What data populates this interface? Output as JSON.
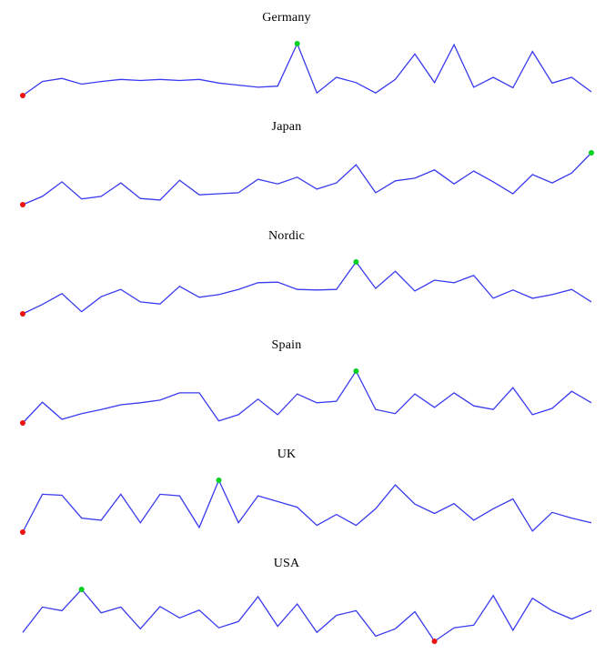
{
  "page": {
    "background": "#ffffff",
    "line_color": "#3a3af0",
    "min_marker_color": "#ee1111",
    "max_marker_color": "#00d020"
  },
  "chart_data": [
    {
      "type": "line",
      "title": "Germany",
      "x_range": [
        1,
        30
      ],
      "ylim": [
        0,
        100
      ],
      "grid": false,
      "axes": "none",
      "values": [
        0,
        27,
        33,
        22,
        27,
        31,
        29,
        31,
        29,
        31,
        24,
        20,
        16,
        18,
        100,
        5,
        35,
        25,
        5,
        31,
        80,
        25,
        98,
        16,
        35,
        15,
        85,
        24,
        35,
        7
      ],
      "min_marker": {
        "index": 0,
        "color": "#ee1111"
      },
      "max_marker": {
        "index": 14,
        "color": "#00d020"
      },
      "line_color": "#3a3af0"
    },
    {
      "type": "line",
      "title": "Japan",
      "x_range": [
        1,
        30
      ],
      "ylim": [
        0,
        100
      ],
      "grid": false,
      "axes": "none",
      "values": [
        0,
        16,
        44,
        11,
        16,
        42,
        12,
        9,
        47,
        19,
        21,
        23,
        49,
        40,
        53,
        30,
        42,
        77,
        23,
        46,
        51,
        67,
        40,
        65,
        44,
        21,
        58,
        42,
        61,
        100
      ],
      "min_marker": {
        "index": 0,
        "color": "#ee1111"
      },
      "max_marker": {
        "index": 29,
        "color": "#00d020"
      },
      "line_color": "#3a3af0"
    },
    {
      "type": "line",
      "title": "Nordic",
      "x_range": [
        1,
        30
      ],
      "ylim": [
        0,
        100
      ],
      "grid": false,
      "axes": "none",
      "values": [
        0,
        18,
        39,
        4,
        33,
        47,
        23,
        19,
        53,
        32,
        37,
        47,
        60,
        61,
        47,
        46,
        47,
        100,
        49,
        82,
        44,
        65,
        60,
        74,
        30,
        46,
        30,
        37,
        47,
        23
      ],
      "min_marker": {
        "index": 0,
        "color": "#ee1111"
      },
      "max_marker": {
        "index": 17,
        "color": "#00d020"
      },
      "line_color": "#3a3af0"
    },
    {
      "type": "line",
      "title": "Spain",
      "x_range": [
        1,
        30
      ],
      "ylim": [
        0,
        100
      ],
      "grid": false,
      "axes": "none",
      "values": [
        0,
        40,
        7,
        18,
        26,
        35,
        39,
        44,
        58,
        58,
        4,
        16,
        46,
        16,
        56,
        39,
        42,
        100,
        26,
        18,
        56,
        30,
        58,
        33,
        26,
        68,
        16,
        28,
        61,
        39
      ],
      "min_marker": {
        "index": 0,
        "color": "#ee1111"
      },
      "max_marker": {
        "index": 17,
        "color": "#00d020"
      },
      "line_color": "#3a3af0"
    },
    {
      "type": "line",
      "title": "UK",
      "x_range": [
        1,
        30
      ],
      "ylim": [
        0,
        100
      ],
      "grid": false,
      "axes": "none",
      "values": [
        0,
        73,
        71,
        27,
        23,
        73,
        18,
        73,
        70,
        9,
        100,
        18,
        70,
        59,
        48,
        13,
        34,
        13,
        45,
        91,
        54,
        36,
        55,
        23,
        45,
        64,
        2,
        38,
        27,
        18
      ],
      "min_marker": {
        "index": 0,
        "color": "#ee1111"
      },
      "max_marker": {
        "index": 10,
        "color": "#00d020"
      },
      "line_color": "#3a3af0"
    },
    {
      "type": "line",
      "title": "USA",
      "x_range": [
        1,
        30
      ],
      "ylim": [
        0,
        100
      ],
      "grid": false,
      "axes": "none",
      "values": [
        17,
        66,
        59,
        100,
        55,
        66,
        24,
        67,
        45,
        60,
        26,
        38,
        86,
        29,
        72,
        17,
        50,
        59,
        10,
        24,
        57,
        0,
        26,
        31,
        88,
        21,
        83,
        59,
        43,
        59
      ],
      "min_marker": {
        "index": 21,
        "color": "#ee1111"
      },
      "max_marker": {
        "index": 3,
        "color": "#00d020"
      },
      "line_color": "#3a3af0"
    }
  ]
}
